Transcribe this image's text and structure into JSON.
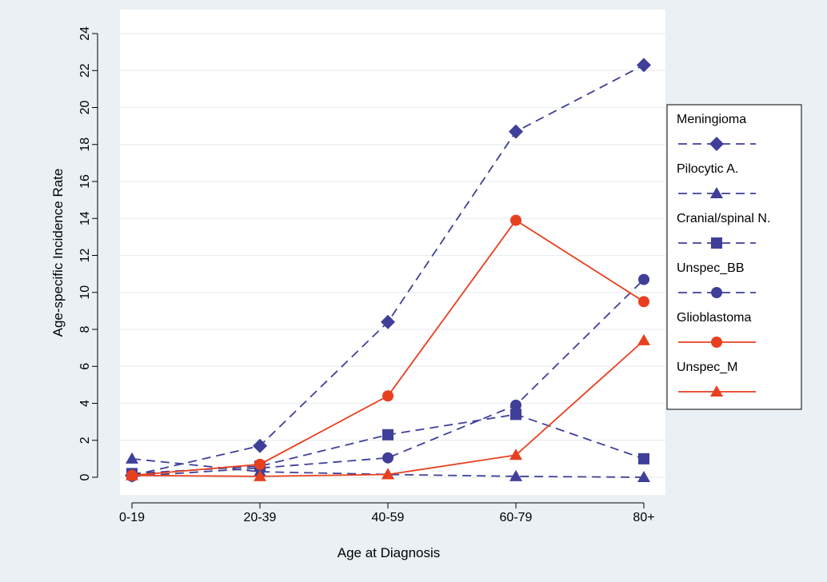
{
  "chart_data": {
    "type": "line",
    "title": "",
    "xlabel": "Age at Diagnosis",
    "ylabel": "Age-specific Incidence Rate",
    "categories": [
      "0-19",
      "20-39",
      "40-59",
      "60-79",
      "80+"
    ],
    "ylim": [
      0,
      24
    ],
    "yticks": [
      0,
      2,
      4,
      6,
      8,
      10,
      12,
      14,
      16,
      18,
      20,
      22,
      24
    ],
    "grid": "horizontal",
    "legend_position": "right",
    "series": [
      {
        "name": "Meningioma",
        "values": [
          0.1,
          1.7,
          8.4,
          18.7,
          22.3
        ],
        "color": "#3f3f9a",
        "dash": "dashed",
        "marker": "diamond"
      },
      {
        "name": "Pilocytic A.",
        "values": [
          1.0,
          0.3,
          0.15,
          0.05,
          0.0
        ],
        "color": "#3f3f9a",
        "dash": "dashed",
        "marker": "triangle"
      },
      {
        "name": "Cranial/spinal N.",
        "values": [
          0.2,
          0.6,
          2.3,
          3.4,
          1.0
        ],
        "color": "#3f3f9a",
        "dash": "dashed",
        "marker": "square"
      },
      {
        "name": "Unspec_BB",
        "values": [
          0.05,
          0.5,
          1.05,
          3.9,
          10.7
        ],
        "color": "#3f3f9a",
        "dash": "dashed",
        "marker": "circle"
      },
      {
        "name": "Glioblastoma",
        "values": [
          0.1,
          0.7,
          4.4,
          13.9,
          9.5
        ],
        "color": "#e8401f",
        "dash": "solid",
        "marker": "circle"
      },
      {
        "name": "Unspec_M",
        "values": [
          0.1,
          0.05,
          0.15,
          1.2,
          7.4
        ],
        "color": "#e8401f",
        "dash": "solid",
        "marker": "triangle"
      }
    ]
  }
}
